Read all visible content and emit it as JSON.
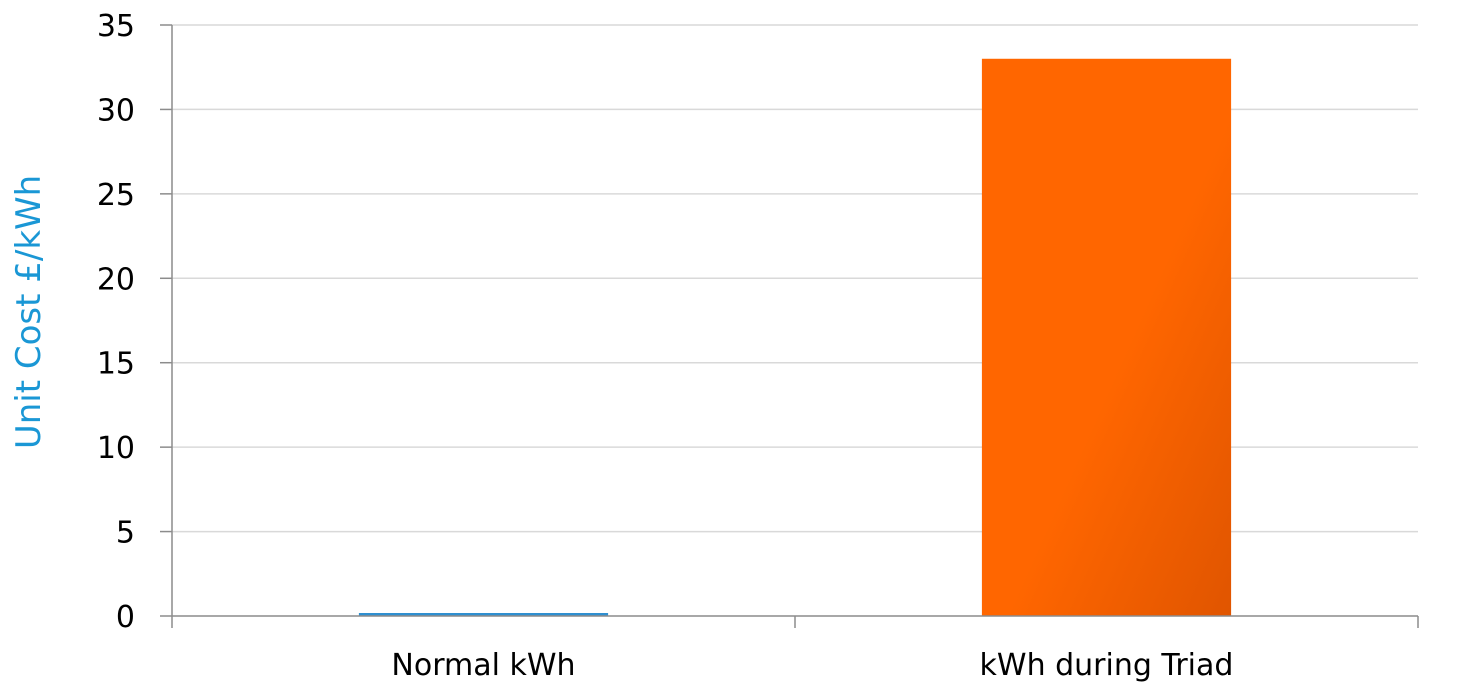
{
  "chart_data": {
    "type": "bar",
    "title": "",
    "xlabel": "",
    "ylabel": "Unit Cost £/kWh",
    "categories": [
      "Normal kWh",
      "kWh during Triad"
    ],
    "values": [
      0.1,
      33
    ],
    "bar_colors": [
      "#2f8fd0",
      "#ff6600"
    ],
    "bar_gradient_end": "#e05500",
    "ylim": [
      0,
      35
    ],
    "yticks": [
      0,
      5,
      10,
      15,
      20,
      25,
      30,
      35
    ],
    "ytick_labels": [
      "0",
      "5",
      "10",
      "15",
      "20",
      "25",
      "30",
      "35"
    ],
    "grid": true,
    "legend": "none"
  },
  "colors": {
    "ylabel": "#1a97d5",
    "grid": "#d9d9d9",
    "axis": "#8c8c8c",
    "text": "#000000"
  }
}
